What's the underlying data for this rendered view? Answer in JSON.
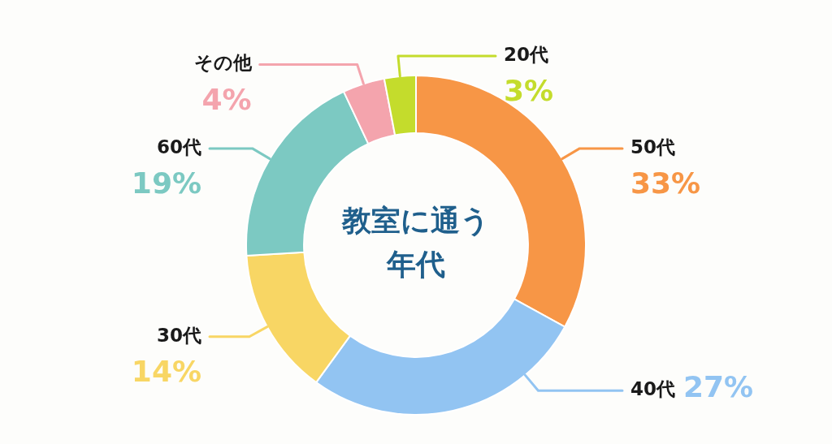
{
  "chart_data": {
    "type": "donut",
    "title": "教室に通う年代",
    "categories": [
      "50代",
      "40代",
      "30代",
      "60代",
      "その他",
      "20代"
    ],
    "values": [
      33,
      27,
      14,
      19,
      4,
      3
    ],
    "colors": [
      "#f79646",
      "#92c4f2",
      "#f8d664",
      "#7cc9c2",
      "#f4a4ad",
      "#c4dc2c"
    ],
    "value_labels": [
      "33%",
      "27%",
      "14%",
      "19%",
      "4%",
      "3%"
    ],
    "legend": false
  }
}
